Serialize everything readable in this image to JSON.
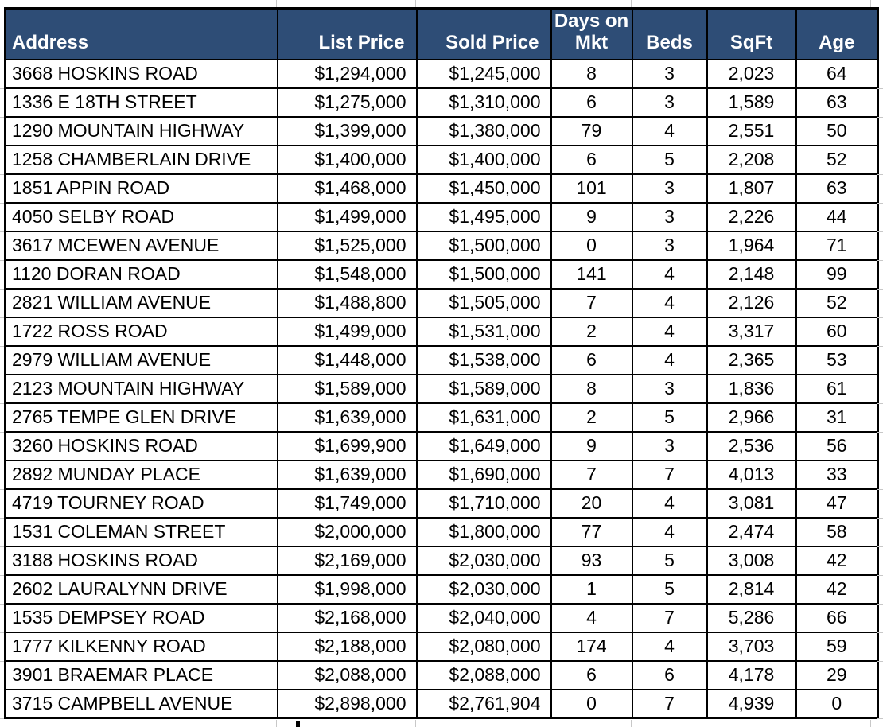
{
  "table": {
    "columns": [
      {
        "key": "address",
        "label": "Address"
      },
      {
        "key": "list_price",
        "label": "List Price"
      },
      {
        "key": "sold_price",
        "label": "Sold Price"
      },
      {
        "key": "days_on_mkt",
        "label": "Days on Mkt"
      },
      {
        "key": "beds",
        "label": "Beds"
      },
      {
        "key": "sqft",
        "label": "SqFt"
      },
      {
        "key": "age",
        "label": "Age"
      }
    ],
    "rows": [
      [
        "3668 HOSKINS ROAD",
        "$1,294,000",
        "$1,245,000",
        "8",
        "3",
        "2,023",
        "64"
      ],
      [
        "1336 E 18TH STREET",
        "$1,275,000",
        "$1,310,000",
        "6",
        "3",
        "1,589",
        "63"
      ],
      [
        "1290 MOUNTAIN HIGHWAY",
        "$1,399,000",
        "$1,380,000",
        "79",
        "4",
        "2,551",
        "50"
      ],
      [
        "1258 CHAMBERLAIN DRIVE",
        "$1,400,000",
        "$1,400,000",
        "6",
        "5",
        "2,208",
        "52"
      ],
      [
        "1851 APPIN ROAD",
        "$1,468,000",
        "$1,450,000",
        "101",
        "3",
        "1,807",
        "63"
      ],
      [
        "4050 SELBY ROAD",
        "$1,499,000",
        "$1,495,000",
        "9",
        "3",
        "2,226",
        "44"
      ],
      [
        "3617 MCEWEN AVENUE",
        "$1,525,000",
        "$1,500,000",
        "0",
        "3",
        "1,964",
        "71"
      ],
      [
        "1120 DORAN ROAD",
        "$1,548,000",
        "$1,500,000",
        "141",
        "4",
        "2,148",
        "99"
      ],
      [
        "2821 WILLIAM AVENUE",
        "$1,488,800",
        "$1,505,000",
        "7",
        "4",
        "2,126",
        "52"
      ],
      [
        "1722 ROSS ROAD",
        "$1,499,000",
        "$1,531,000",
        "2",
        "4",
        "3,317",
        "60"
      ],
      [
        "2979 WILLIAM AVENUE",
        "$1,448,000",
        "$1,538,000",
        "6",
        "4",
        "2,365",
        "53"
      ],
      [
        "2123 MOUNTAIN HIGHWAY",
        "$1,589,000",
        "$1,589,000",
        "8",
        "3",
        "1,836",
        "61"
      ],
      [
        "2765 TEMPE GLEN DRIVE",
        "$1,639,000",
        "$1,631,000",
        "2",
        "5",
        "2,966",
        "31"
      ],
      [
        "3260 HOSKINS ROAD",
        "$1,699,900",
        "$1,649,000",
        "9",
        "3",
        "2,536",
        "56"
      ],
      [
        "2892 MUNDAY PLACE",
        "$1,639,000",
        "$1,690,000",
        "7",
        "7",
        "4,013",
        "33"
      ],
      [
        "4719 TOURNEY ROAD",
        "$1,749,000",
        "$1,710,000",
        "20",
        "4",
        "3,081",
        "47"
      ],
      [
        "1531 COLEMAN STREET",
        "$2,000,000",
        "$1,800,000",
        "77",
        "4",
        "2,474",
        "58"
      ],
      [
        "3188 HOSKINS ROAD",
        "$2,169,000",
        "$2,030,000",
        "93",
        "5",
        "3,008",
        "42"
      ],
      [
        "2602 LAURALYNN DRIVE",
        "$1,998,000",
        "$2,030,000",
        "1",
        "5",
        "2,814",
        "42"
      ],
      [
        "1535 DEMPSEY ROAD",
        "$2,168,000",
        "$2,040,000",
        "4",
        "7",
        "5,286",
        "66"
      ],
      [
        "1777 KILKENNY ROAD",
        "$2,188,000",
        "$2,080,000",
        "174",
        "4",
        "3,703",
        "59"
      ],
      [
        "3901 BRAEMAR PLACE",
        "$2,088,000",
        "$2,088,000",
        "6",
        "6",
        "4,178",
        "29"
      ],
      [
        "3715 CAMPBELL AVENUE",
        "$2,898,000",
        "$2,761,904",
        "0",
        "7",
        "4,939",
        "0"
      ]
    ]
  },
  "colors": {
    "header_bg": "#2E4D76",
    "header_text": "#FFFFFF",
    "cell_bg": "#FFFFFF",
    "table_border": "#000000",
    "sheet_gridline": "#C8C8C8"
  }
}
